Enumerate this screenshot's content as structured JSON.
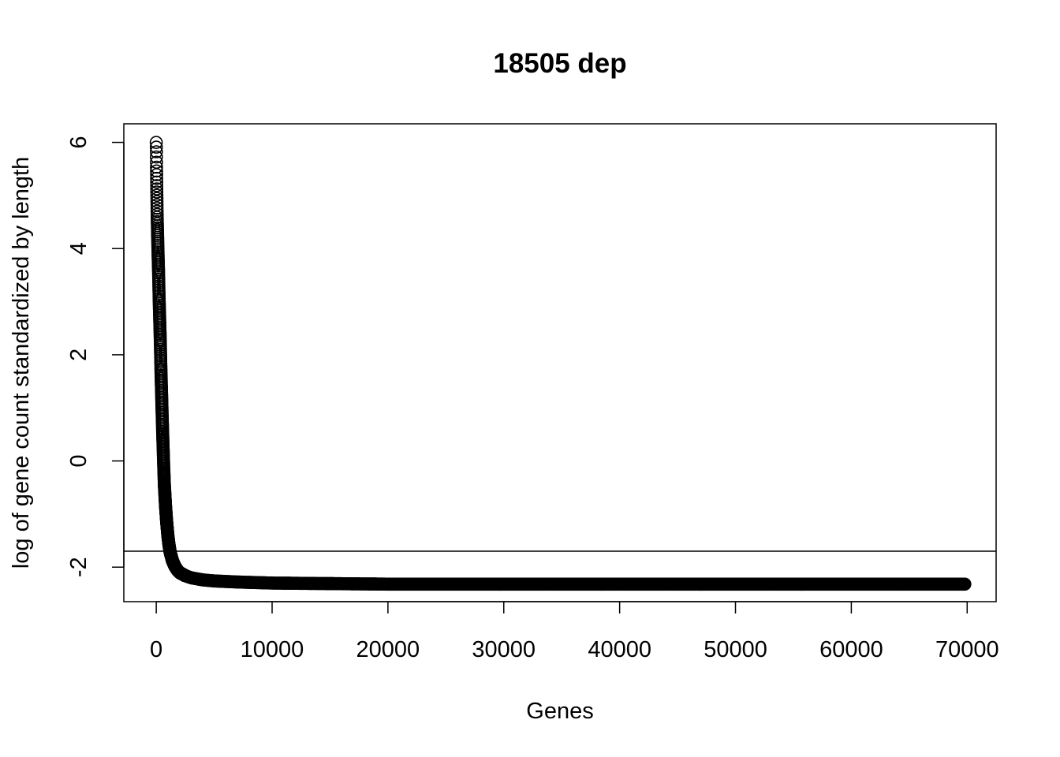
{
  "chart_data": {
    "type": "scatter",
    "title": "18505 dep",
    "xlabel": "Genes",
    "ylabel": "log of gene count standardized by length",
    "xlim": [
      -2800,
      72500
    ],
    "ylim": [
      -2.65,
      6.35
    ],
    "x_ticks": [
      0,
      10000,
      20000,
      30000,
      40000,
      50000,
      60000,
      70000
    ],
    "x_tick_labels": [
      "0",
      "10000",
      "20000",
      "30000",
      "40000",
      "50000",
      "60000",
      "70000"
    ],
    "y_ticks": [
      -2,
      0,
      2,
      4,
      6
    ],
    "y_tick_labels": [
      "-2",
      "0",
      "2",
      "4",
      "6"
    ],
    "hline": -1.7,
    "marker": "open-circle",
    "n_points": 69800,
    "series": [
      {
        "x": [
          1,
          10,
          20,
          40,
          60,
          80,
          100,
          150,
          200,
          250,
          300,
          350,
          400,
          450,
          500,
          550,
          600,
          650,
          700,
          800,
          900,
          1000,
          1100,
          1200,
          1400,
          1600,
          1800,
          2000,
          2500,
          3000,
          4000,
          5000,
          7000,
          10000,
          15000,
          20000,
          30000,
          40000,
          50000,
          60000,
          69800
        ],
        "y": [
          6.0,
          5.8,
          5.55,
          5.2,
          4.9,
          4.6,
          4.4,
          3.95,
          3.55,
          3.05,
          2.65,
          2.25,
          1.75,
          1.35,
          0.95,
          0.55,
          0.2,
          -0.15,
          -0.45,
          -0.85,
          -1.15,
          -1.4,
          -1.58,
          -1.72,
          -1.88,
          -1.98,
          -2.05,
          -2.1,
          -2.16,
          -2.2,
          -2.24,
          -2.26,
          -2.28,
          -2.3,
          -2.31,
          -2.32,
          -2.32,
          -2.32,
          -2.32,
          -2.32,
          -2.32
        ]
      }
    ]
  }
}
